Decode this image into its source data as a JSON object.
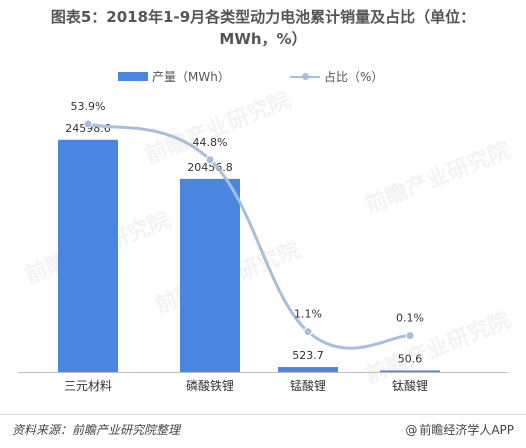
{
  "title_line1": "图表5：2018年1-9月各类型动力电池累计销量及占比（单位：",
  "title_line2": "MWh，%）",
  "legend": {
    "bar_label": "产量（MWh）",
    "line_label": "占比（%）"
  },
  "chart_data": {
    "type": "bar",
    "categories": [
      "三元材料",
      "磷酸铁锂",
      "锰酸锂",
      "钛酸锂"
    ],
    "series": [
      {
        "name": "产量（MWh）",
        "type": "bar",
        "values": [
          24598.6,
          20456.8,
          523.7,
          50.6
        ],
        "labels": [
          "24598.6",
          "20456.8",
          "523.7",
          "50.6"
        ]
      },
      {
        "name": "占比（%）",
        "type": "line",
        "values": [
          53.9,
          44.8,
          1.1,
          0.1
        ],
        "labels": [
          "53.9%",
          "44.8%",
          "1.1%",
          "0.1%"
        ]
      }
    ],
    "bar_color": "#4a86e0",
    "line_color": "#a8bfdc",
    "grid": false
  },
  "watermark_text": "前瞻产业研究院",
  "footer": {
    "source": "资料来源：前瞻产业研究院整理",
    "at_symbol": "@",
    "brand": "前瞻经济学人APP"
  }
}
